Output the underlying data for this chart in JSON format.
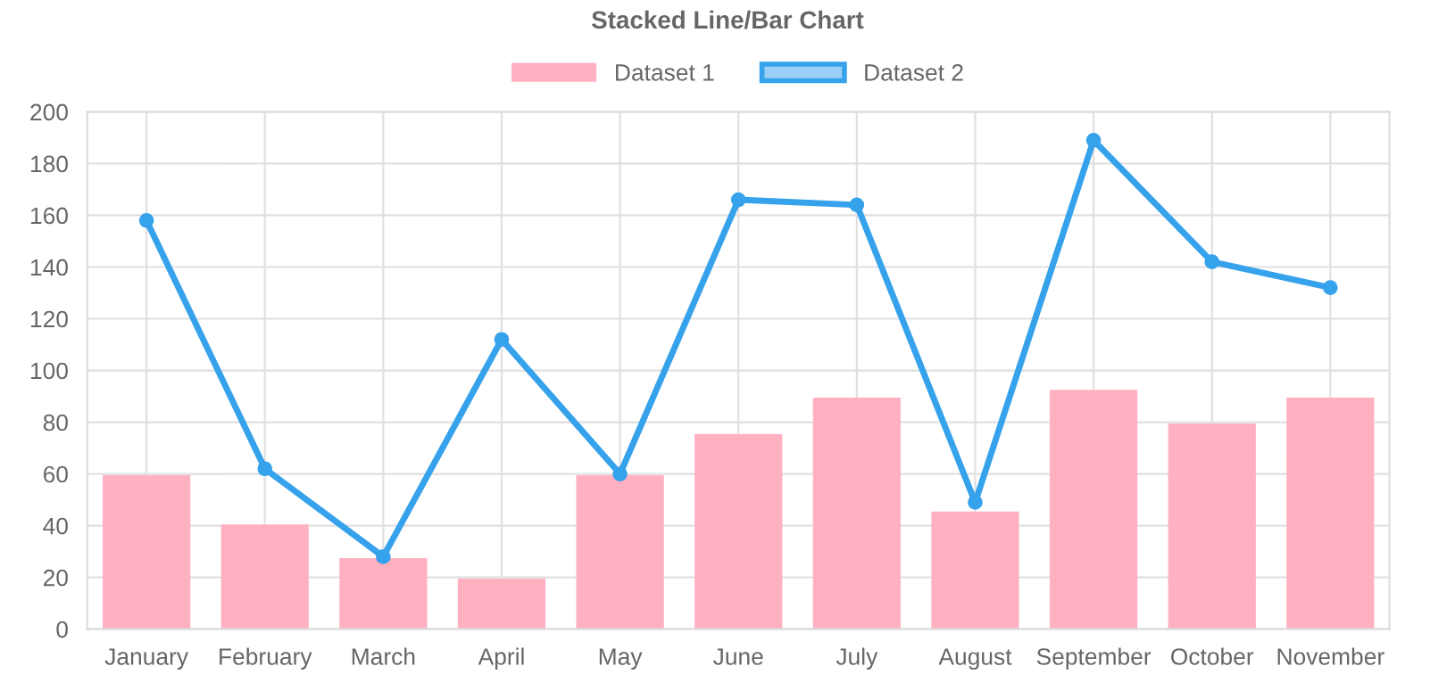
{
  "chart_data": {
    "type": "bar",
    "title": "Stacked Line/Bar Chart",
    "categories": [
      "January",
      "February",
      "March",
      "April",
      "May",
      "June",
      "July",
      "August",
      "September",
      "October",
      "November"
    ],
    "series": [
      {
        "name": "Dataset 1",
        "color": "#ffb1c1",
        "values": [
          59,
          40,
          27,
          19,
          59,
          75,
          89,
          45,
          92,
          79,
          89
        ]
      },
      {
        "name": "Dataset 2",
        "type": "line",
        "color": "#36a2eb",
        "values": [
          158,
          62,
          28,
          112,
          60,
          166,
          164,
          49,
          189,
          142,
          132
        ]
      }
    ],
    "ylim": [
      0,
      200
    ],
    "yticks": [
      0,
      20,
      40,
      60,
      80,
      100,
      120,
      140,
      160,
      180,
      200
    ],
    "grid": true,
    "legend": "top",
    "marker": "circle",
    "line_style": "solid"
  }
}
